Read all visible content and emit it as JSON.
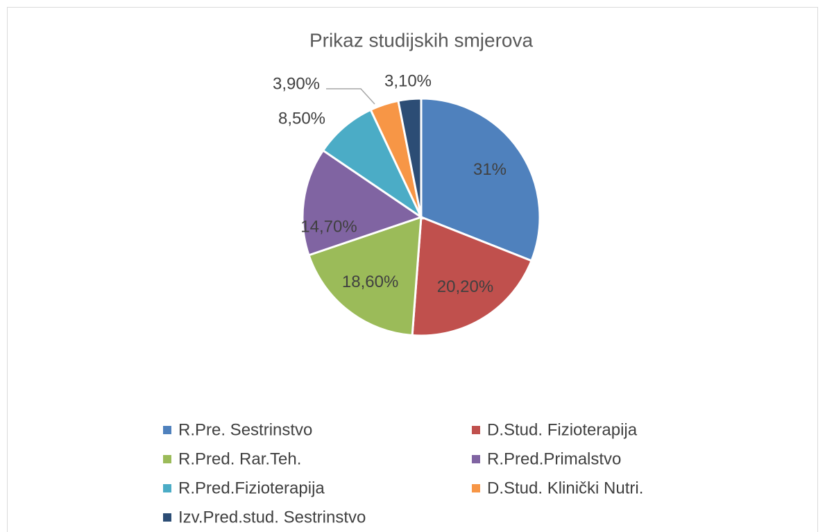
{
  "chart_data": {
    "type": "pie",
    "title": "Prikaz studijskih smjerova",
    "categories": [
      "R.Pre. Sestrinstvo",
      "D.Stud. Fizioterapija",
      "R.Pred. Rar.Teh.",
      "R.Pred.Primalstvo",
      "R.Pred.Fizioterapija",
      "D.Stud. Klinički Nutri.",
      "Izv.Pred.stud. Sestrinstvo"
    ],
    "values": [
      31,
      20.2,
      18.6,
      14.7,
      8.5,
      3.9,
      3.1
    ],
    "value_labels": [
      "31%",
      "20,20%",
      "18,60%",
      "14,70%",
      "8,50%",
      "3,90%",
      "3,10%"
    ],
    "colors": [
      "#4f81bd",
      "#c0504d",
      "#9bbb59",
      "#8064a2",
      "#4bacc6",
      "#f79646",
      "#2c4d75"
    ],
    "legend": "bottom"
  }
}
